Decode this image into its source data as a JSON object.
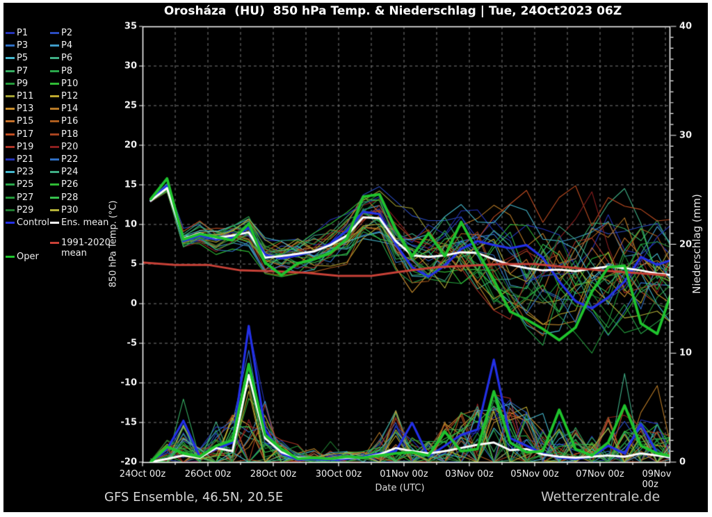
{
  "title": "Orosháza  (HU)  850 hPa Temp. & Niederschlag | Tue, 24Oct2023 06Z",
  "footer": {
    "left": "GFS Ensemble, 46.5N, 20.5E",
    "right": "Wetterzentrale.de"
  },
  "axes": {
    "x": {
      "label": "Date (UTC)",
      "tick_labels": [
        "24Oct 00z",
        "26Oct 00z",
        "28Oct 00z",
        "30Oct 00z",
        "01Nov 00z",
        "03Nov 00z",
        "05Nov 00z",
        "07Nov 00z",
        "09Nov 00z"
      ],
      "tick_days": [
        0,
        2,
        4,
        6,
        8,
        10,
        12,
        14,
        16
      ],
      "gridline_every_days": 1
    },
    "y_left": {
      "label": "850 hPa Temp. (°C)",
      "min": -20,
      "max": 35,
      "tick_step": 5
    },
    "y_right": {
      "label": "Niederschlag (mm)",
      "min": 0,
      "max": 40,
      "label_step": 10,
      "minor_tick_step": 1
    }
  },
  "colors": {
    "background": "#000000",
    "frame": "#ffffff",
    "grid": "#7d7d7d",
    "ens_mean": "#ffffff",
    "control": "#2330e6",
    "oper": "#1fc32d",
    "clim_mean": "#c84137"
  },
  "legend": {
    "members": [
      {
        "label": "P1",
        "color": "#2433b8"
      },
      {
        "label": "P2",
        "color": "#2a4cc0"
      },
      {
        "label": "P3",
        "color": "#2f6fc4"
      },
      {
        "label": "P4",
        "color": "#3f9bc8"
      },
      {
        "label": "P5",
        "color": "#45b7cd"
      },
      {
        "label": "P6",
        "color": "#3fae85"
      },
      {
        "label": "P7",
        "color": "#36ad62"
      },
      {
        "label": "P8",
        "color": "#2aa84b"
      },
      {
        "label": "P9",
        "color": "#23983a"
      },
      {
        "label": "P10",
        "color": "#2fbb35"
      },
      {
        "label": "P11",
        "color": "#a3a233"
      },
      {
        "label": "P12",
        "color": "#bfa92e"
      },
      {
        "label": "P13",
        "color": "#c98f2e"
      },
      {
        "label": "P14",
        "color": "#b87a26"
      },
      {
        "label": "P15",
        "color": "#c4702a"
      },
      {
        "label": "P16",
        "color": "#ad5d1f"
      },
      {
        "label": "P17",
        "color": "#c24e22"
      },
      {
        "label": "P18",
        "color": "#a94420"
      },
      {
        "label": "P19",
        "color": "#b03527"
      },
      {
        "label": "P20",
        "color": "#8c1f1f"
      },
      {
        "label": "P21",
        "color": "#2433b8"
      },
      {
        "label": "P22",
        "color": "#2f6fc4"
      },
      {
        "label": "P23",
        "color": "#45b7cd"
      },
      {
        "label": "P24",
        "color": "#3fae85"
      },
      {
        "label": "P25",
        "color": "#2aa84b"
      },
      {
        "label": "P26",
        "color": "#2fbb35"
      },
      {
        "label": "P27",
        "color": "#23983a"
      },
      {
        "label": "P28",
        "color": "#36c04d"
      },
      {
        "label": "P29",
        "color": "#1f7a30"
      },
      {
        "label": "P30",
        "color": "#b4b238"
      }
    ],
    "extras": [
      {
        "label": "Control",
        "color": "#2330e6",
        "col": 0,
        "slot": 15
      },
      {
        "label": "Ens. mean",
        "color": "#ffffff",
        "col": 1,
        "slot": 15
      },
      {
        "label": "1991-2020",
        "label2": "mean",
        "color": "#c84137",
        "col": 1,
        "slot": 16.6
      },
      {
        "label": "Oper",
        "color": "#1fc32d",
        "col": 0,
        "slot": 17.7
      }
    ]
  },
  "chart_data": {
    "type": "line",
    "title": "Orosháza (HU) 850 hPa Temp. & Niederschlag | Tue, 24Oct2023 06Z",
    "x_unit": "days since 24Oct2023 00Z",
    "ylim_temp": [
      -20,
      35
    ],
    "ylim_precip": [
      0,
      40
    ],
    "x_halfday": [
      0.25,
      0.75,
      1.25,
      1.75,
      2.25,
      2.75,
      3.25,
      3.75,
      4.25,
      4.75,
      5.25,
      5.75,
      6.25,
      6.75,
      7.25,
      7.75,
      8.25,
      8.75,
      9.25,
      9.75,
      10.25,
      10.75,
      11.25,
      11.75,
      12.25,
      12.75,
      13.25,
      13.75,
      14.25,
      14.75,
      15.25,
      15.75,
      16.25
    ],
    "x_daily": [
      0,
      1,
      2,
      3,
      4,
      5,
      6,
      7,
      8,
      9,
      10,
      11,
      12,
      13,
      14,
      15,
      16
    ],
    "series": [
      {
        "name": "Ens. mean",
        "variable": "850hPa temperature (C)",
        "axis": "temp",
        "x": "x_halfday",
        "color": "#ffffff",
        "values": [
          13.0,
          14.6,
          8.2,
          8.9,
          8.3,
          8.6,
          9.0,
          5.8,
          6.0,
          6.3,
          6.6,
          7.4,
          8.6,
          10.9,
          10.8,
          7.9,
          6.1,
          5.9,
          6.1,
          6.5,
          6.4,
          5.6,
          4.9,
          4.5,
          4.2,
          4.3,
          4.1,
          4.4,
          4.7,
          4.5,
          4.2,
          3.8,
          3.6
        ]
      },
      {
        "name": "Control",
        "variable": "850hPa temperature (C)",
        "axis": "temp",
        "x": "x_halfday",
        "color": "#2330e6",
        "values": [
          13.0,
          14.9,
          7.9,
          8.6,
          8.1,
          8.3,
          9.6,
          6.2,
          5.7,
          6.1,
          6.6,
          7.6,
          9.2,
          11.6,
          11.3,
          7.5,
          4.6,
          3.4,
          4.8,
          6.9,
          7.9,
          7.4,
          7.0,
          7.4,
          5.8,
          2.8,
          0.3,
          -0.6,
          0.8,
          2.8,
          5.9,
          4.9,
          5.6
        ]
      },
      {
        "name": "Oper",
        "variable": "850hPa temperature (C)",
        "axis": "temp",
        "x": "x_halfday",
        "color": "#1fc32d",
        "values": [
          13.2,
          15.8,
          8.1,
          8.8,
          8.4,
          8.0,
          10.1,
          5.2,
          3.6,
          5.1,
          5.6,
          6.4,
          8.2,
          13.5,
          13.8,
          9.4,
          6.0,
          8.9,
          6.0,
          10.3,
          6.5,
          3.0,
          -1.0,
          -2.0,
          -3.2,
          -4.6,
          -3.0,
          1.5,
          4.6,
          4.8,
          -2.5,
          -3.8,
          2.2
        ]
      },
      {
        "name": "1991-2020 mean",
        "variable": "850hPa temperature (C)",
        "axis": "temp",
        "x": "x_daily",
        "color": "#c84137",
        "values": [
          5.2,
          4.9,
          4.9,
          4.2,
          4.1,
          3.9,
          3.5,
          3.5,
          4.1,
          4.6,
          4.8,
          5.0,
          5.0,
          4.6,
          4.2,
          3.9,
          3.6
        ]
      },
      {
        "name": "Ens. mean",
        "variable": "precipitation (mm)",
        "axis": "precip",
        "x": "x_halfday",
        "color": "#ffffff",
        "values": [
          0,
          0.3,
          0.6,
          0.4,
          1.3,
          1.0,
          8.0,
          2.2,
          0.9,
          0.4,
          0.4,
          0.3,
          0.4,
          0.4,
          0.7,
          1.3,
          1.0,
          0.8,
          1.0,
          1.3,
          1.6,
          1.8,
          1.1,
          1.2,
          0.7,
          0.5,
          0.4,
          0.5,
          0.6,
          0.5,
          0.8,
          0.6,
          0.4
        ]
      },
      {
        "name": "Control",
        "variable": "precipitation (mm)",
        "axis": "precip",
        "x": "x_halfday",
        "color": "#2330e6",
        "values": [
          0,
          1.2,
          3.8,
          0.5,
          1.2,
          1.8,
          12.5,
          3.0,
          0.8,
          0.2,
          0.3,
          0.2,
          0.3,
          0.5,
          0.8,
          1.0,
          3.6,
          0.5,
          1.5,
          2.5,
          3.0,
          9.4,
          2.2,
          1.5,
          0.8,
          0.4,
          0.3,
          0.5,
          1.5,
          0.8,
          3.5,
          0.8,
          0.4
        ]
      },
      {
        "name": "Oper",
        "variable": "precipitation (mm)",
        "axis": "precip",
        "x": "x_halfday",
        "color": "#1fc32d",
        "values": [
          0,
          1.4,
          0.8,
          0.5,
          1.5,
          2.0,
          9.0,
          2.5,
          1.2,
          0.3,
          0.4,
          0.3,
          0.5,
          0.4,
          0.6,
          0.8,
          0.9,
          0.6,
          2.8,
          1.0,
          1.2,
          6.5,
          1.8,
          0.9,
          1.0,
          4.8,
          1.2,
          0.6,
          1.8,
          5.2,
          1.5,
          0.8,
          0.5
        ]
      }
    ],
    "ensemble_members": {
      "names": [
        "P1",
        "P2",
        "P3",
        "P4",
        "P5",
        "P6",
        "P7",
        "P8",
        "P9",
        "P10",
        "P11",
        "P12",
        "P13",
        "P14",
        "P15",
        "P16",
        "P17",
        "P18",
        "P19",
        "P20",
        "P21",
        "P22",
        "P23",
        "P24",
        "P25",
        "P26",
        "P27",
        "P28",
        "P29",
        "P30"
      ],
      "colors": [
        "#2433b8",
        "#2a4cc0",
        "#2f6fc4",
        "#3f9bc8",
        "#45b7cd",
        "#3fae85",
        "#36ad62",
        "#2aa84b",
        "#23983a",
        "#2fbb35",
        "#a3a233",
        "#bfa92e",
        "#c98f2e",
        "#b87a26",
        "#c4702a",
        "#ad5d1f",
        "#c24e22",
        "#a94420",
        "#b03527",
        "#8c1f1f",
        "#2433b8",
        "#2f6fc4",
        "#45b7cd",
        "#3fae85",
        "#2aa84b",
        "#2fbb35",
        "#23983a",
        "#36c04d",
        "#1f7a30",
        "#b4b238"
      ],
      "temp_spread_halfwidth": [
        0.25,
        0.6,
        1.2,
        1.4,
        1.6,
        1.7,
        1.9,
        2.0,
        2.0,
        2.2,
        2.3,
        2.4,
        2.6,
        2.8,
        3.0,
        3.5,
        4.0,
        4.5,
        5.0,
        5.3,
        5.6,
        6.0,
        6.3,
        6.6,
        7.0,
        7.2,
        7.4,
        7.5,
        7.5,
        7.5,
        7.5,
        7.2,
        7.0
      ],
      "precip_spike_profile": [
        0.1,
        1.2,
        2.2,
        0.8,
        2.2,
        2.8,
        9.0,
        3.5,
        1.2,
        0.5,
        0.8,
        0.6,
        0.6,
        0.6,
        1.2,
        2.8,
        1.5,
        1.2,
        2.2,
        3.0,
        3.2,
        4.0,
        3.5,
        2.8,
        1.8,
        2.2,
        1.8,
        1.4,
        2.5,
        3.2,
        2.8,
        2.2,
        1.4
      ],
      "render_seed": 1234
    }
  }
}
